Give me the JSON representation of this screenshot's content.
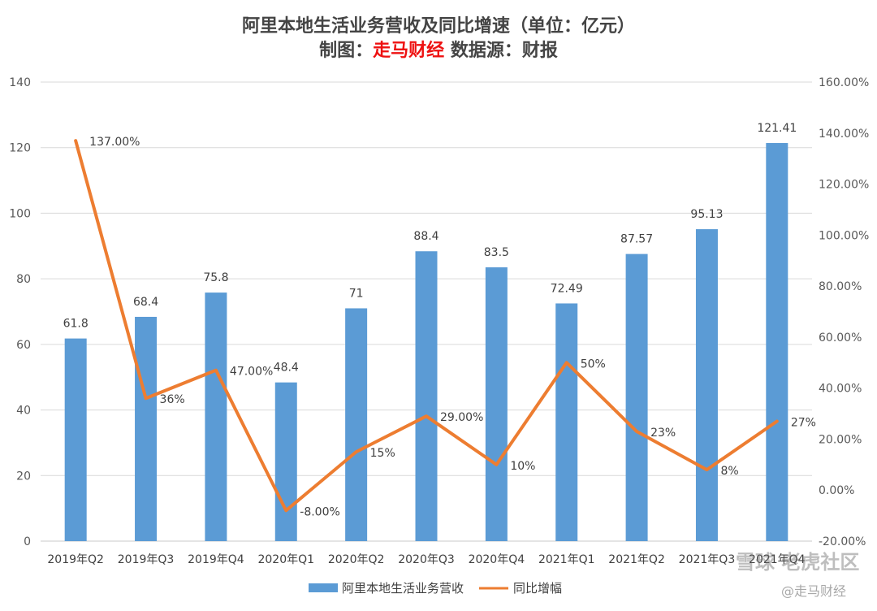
{
  "title": {
    "line1": "阿里本地生活业务营收及同比增速（单位：亿元）",
    "line2_prefix": "制图：",
    "brand": "走马财经",
    "line2_suffix": " 数据源：财报"
  },
  "watermark": {
    "main": "雪球 老虎社区",
    "sub": "@走马财经"
  },
  "chart_data": {
    "type": "bar",
    "categories": [
      "2019年Q2",
      "2019年Q3",
      "2019年Q4",
      "2020年Q1",
      "2020年Q2",
      "2020年Q3",
      "2020年Q4",
      "2021年Q1",
      "2021年Q2",
      "2021年Q3",
      "2021年Q4"
    ],
    "series": [
      {
        "name": "阿里本地生活业务营收",
        "type": "bar",
        "axis": "left",
        "color": "#5b9bd5",
        "values": [
          61.8,
          68.4,
          75.8,
          48.4,
          71,
          88.4,
          83.5,
          72.49,
          87.57,
          95.13,
          121.41
        ],
        "labels": [
          "61.8",
          "68.4",
          "75.8",
          "48.4",
          "71",
          "88.4",
          "83.5",
          "72.49",
          "87.57",
          "95.13",
          "121.41"
        ]
      },
      {
        "name": "同比增幅",
        "type": "line",
        "axis": "right",
        "color": "#ed7d31",
        "values": [
          137,
          36,
          47,
          -8,
          15,
          29,
          10,
          50,
          23,
          8,
          27
        ],
        "labels": [
          "137.00%",
          "36%",
          "47.00%",
          "-8.00%",
          "15%",
          "29.00%",
          "10%",
          "50%",
          "23%",
          "8%",
          "27%"
        ]
      }
    ],
    "y_left": {
      "min": 0,
      "max": 140,
      "ticks": [
        "0",
        "20",
        "40",
        "60",
        "80",
        "100",
        "120",
        "140"
      ]
    },
    "y_right": {
      "min": -20,
      "max": 160,
      "ticks": [
        "-20.00%",
        "0.00%",
        "20.00%",
        "40.00%",
        "60.00%",
        "80.00%",
        "100.00%",
        "120.00%",
        "140.00%",
        "160.00%"
      ]
    },
    "grid": true,
    "legend_position": "bottom"
  }
}
